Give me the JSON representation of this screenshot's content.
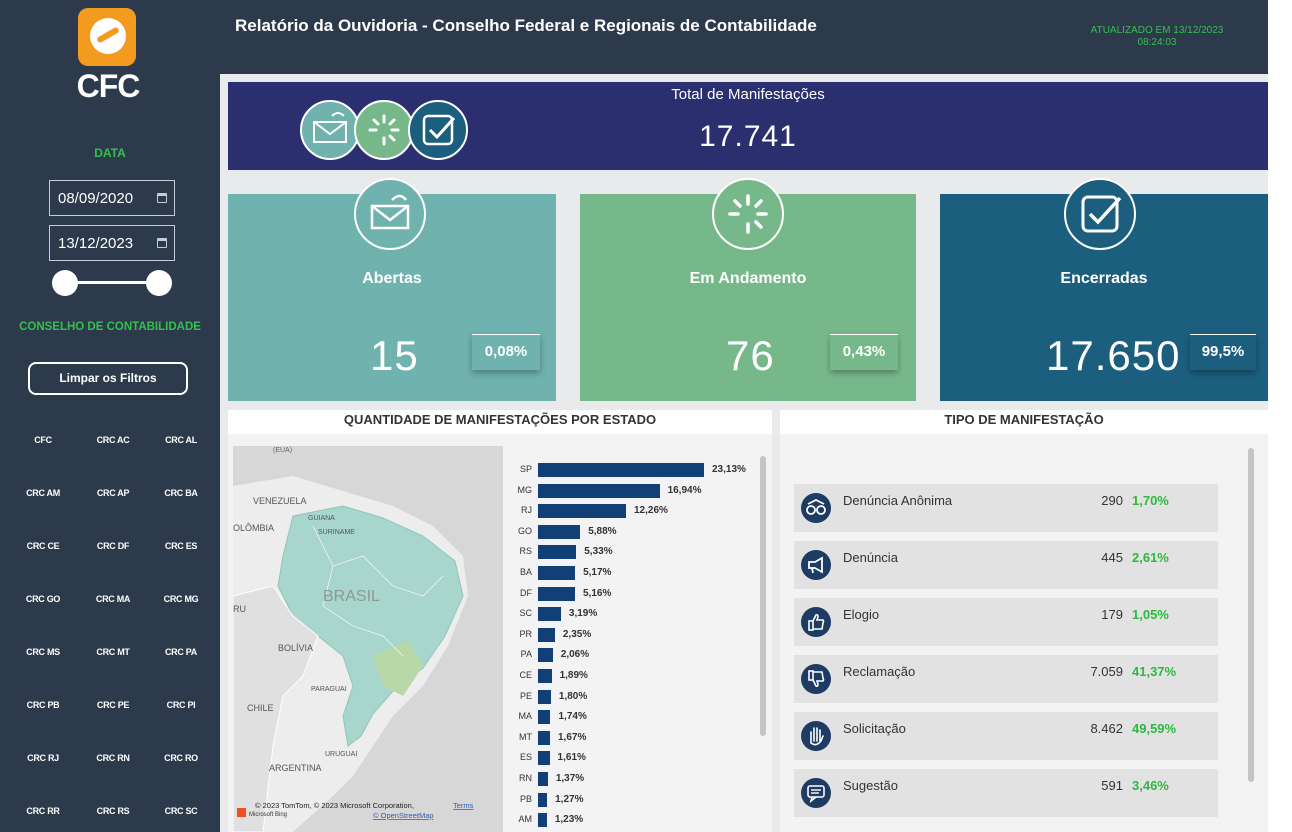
{
  "sidebar": {
    "logo_text": "CFC",
    "date_label": "DATA",
    "date_start": "08/09/2020",
    "date_end": "13/12/2023",
    "council_label": "CONSELHO DE CONTABILIDADE",
    "clear_filters": "Limpar os Filtros",
    "councils": [
      "CFC",
      "CRC AC",
      "CRC AL",
      "CRC AM",
      "CRC AP",
      "CRC BA",
      "CRC CE",
      "CRC DF",
      "CRC ES",
      "CRC GO",
      "CRC MA",
      "CRC MG",
      "CRC MS",
      "CRC MT",
      "CRC PA",
      "CRC PB",
      "CRC PE",
      "CRC PI",
      "CRC RJ",
      "CRC RN",
      "CRC RO",
      "CRC RR",
      "CRC RS",
      "CRC SC"
    ]
  },
  "header": {
    "title": "Relatório da Ouvidoria - Conselho Federal e Regionais de Contabilidade",
    "updated_line1": "ATUALIZADO EM 13/12/2023",
    "updated_line2": "08:24:03"
  },
  "total": {
    "label": "Total de Manifestações",
    "value": "17.741"
  },
  "cards": [
    {
      "title": "Abertas",
      "value": "15",
      "pct": "0,08%",
      "color": "#6fb2ae",
      "icon": "envelope-icon"
    },
    {
      "title": "Em Andamento",
      "value": "76",
      "pct": "0,43%",
      "color": "#77b88a",
      "icon": "loading-icon"
    },
    {
      "title": "Encerradas",
      "value": "17.650",
      "pct": "99,5%",
      "color": "#1b5e7e",
      "icon": "checkbox-icon"
    }
  ],
  "state_panel": {
    "title": "QUANTIDADE DE MANIFESTAÇÕES POR ESTADO",
    "map_labels": {
      "brasil": "BRASIL",
      "venezuela": "VENEZUELA",
      "guiana": "GUIANA",
      "suriname": "SURINAME",
      "colombia": "OLÔMBIA",
      "bolivia": "BOLÍVIA",
      "paraguai": "PARAGUAI",
      "chile": "CHILE",
      "argentina": "ARGENTINA",
      "uruguai": "URUGUAI",
      "peru": "RU",
      "eua": "(EUA)"
    },
    "attribution": "© 2023 TomTom, © 2023 Microsoft Corporation,",
    "terms": "Terms",
    "osm": "© OpenStreetMap",
    "bing": "Microsoft Bing"
  },
  "chart_data": {
    "type": "bar",
    "orientation": "horizontal",
    "categories": [
      "SP",
      "MG",
      "RJ",
      "GO",
      "RS",
      "BA",
      "DF",
      "SC",
      "PR",
      "PA",
      "CE",
      "PE",
      "MA",
      "MT",
      "ES",
      "RN",
      "PB",
      "AM"
    ],
    "values": [
      23.13,
      16.94,
      12.26,
      5.88,
      5.33,
      5.17,
      5.16,
      3.19,
      2.35,
      2.06,
      1.89,
      1.8,
      1.74,
      1.67,
      1.61,
      1.37,
      1.27,
      1.23
    ],
    "labels": [
      "23,13%",
      "16,94%",
      "12,26%",
      "5,88%",
      "5,33%",
      "5,17%",
      "5,16%",
      "3,19%",
      "2,35%",
      "2,06%",
      "1,89%",
      "1,80%",
      "1,74%",
      "1,67%",
      "1,61%",
      "1,37%",
      "1,27%",
      "1,23%"
    ],
    "color": "#123f75"
  },
  "type_panel": {
    "title": "TIPO DE MANIFESTAÇÃO",
    "rows": [
      {
        "name": "Denúncia Anônima",
        "count": "290",
        "pct": "1,70%",
        "icon": "anonymous-icon"
      },
      {
        "name": "Denúncia",
        "count": "445",
        "pct": "2,61%",
        "icon": "megaphone-icon"
      },
      {
        "name": "Elogio",
        "count": "179",
        "pct": "1,05%",
        "icon": "thumbs-up-icon"
      },
      {
        "name": "Reclamação",
        "count": "7.059",
        "pct": "41,37%",
        "icon": "thumbs-down-icon"
      },
      {
        "name": "Solicitação",
        "count": "8.462",
        "pct": "49,59%",
        "icon": "raised-hand-icon"
      },
      {
        "name": "Sugestão",
        "count": "591",
        "pct": "3,46%",
        "icon": "speech-bubble-icon"
      }
    ]
  }
}
